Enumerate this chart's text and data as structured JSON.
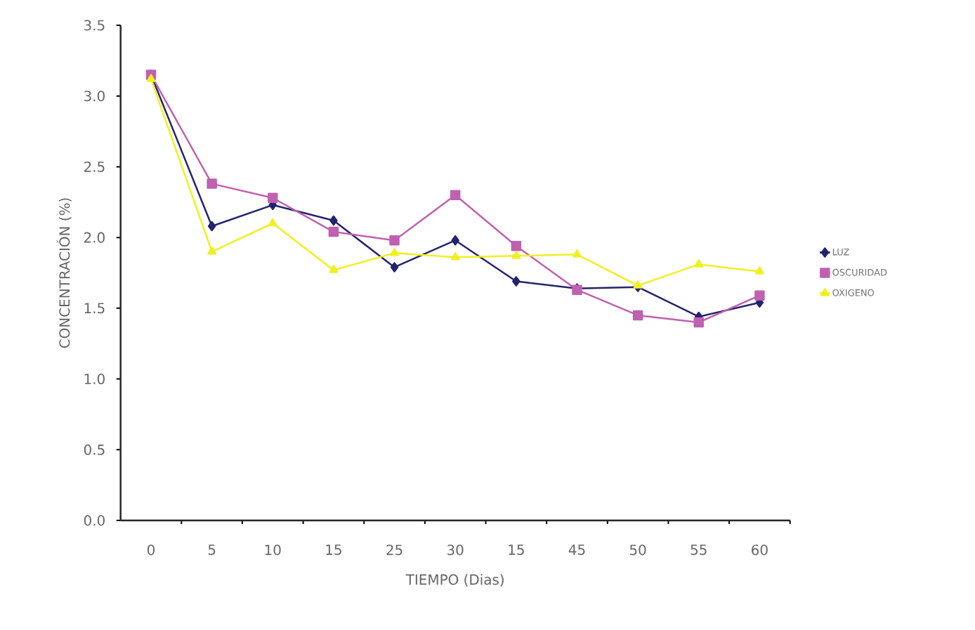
{
  "chart_data": {
    "type": "line",
    "xlabel": "TIEMPO (Dias)",
    "ylabel": "CONCENTRACIÓN (%)",
    "categories": [
      "0",
      "5",
      "10",
      "15",
      "25",
      "30",
      "15",
      "45",
      "50",
      "55",
      "60"
    ],
    "ylim": [
      0,
      3.5
    ],
    "yticks": [
      {
        "value": 0,
        "label": "0.0"
      },
      {
        "value": 0.5,
        "label": "0.5"
      },
      {
        "value": 1,
        "label": "1.0"
      },
      {
        "value": 1.5,
        "label": "1.5"
      },
      {
        "value": 2,
        "label": "2.0"
      },
      {
        "value": 2.5,
        "label": "2.5"
      },
      {
        "value": 3,
        "label": "3.0"
      },
      {
        "value": 3.5,
        "label": "3.5"
      }
    ],
    "legend": "right",
    "line_style": "solid",
    "series": [
      {
        "name": "LUZ",
        "color": "#23236e",
        "marker": "diamond",
        "values": [
          3.15,
          2.08,
          2.23,
          2.12,
          1.79,
          1.98,
          1.69,
          1.64,
          1.65,
          1.44,
          1.54
        ]
      },
      {
        "name": "OSCURIDAD",
        "color": "#c060b0",
        "marker": "square",
        "values": [
          3.15,
          2.38,
          2.28,
          2.04,
          1.98,
          2.3,
          1.94,
          1.63,
          1.45,
          1.4,
          1.59
        ]
      },
      {
        "name": "OXIGENO",
        "color": "#f0f020",
        "marker": "triangle",
        "values": [
          3.12,
          1.9,
          2.1,
          1.77,
          1.89,
          1.86,
          1.87,
          1.88,
          1.66,
          1.81,
          1.76
        ]
      }
    ]
  }
}
